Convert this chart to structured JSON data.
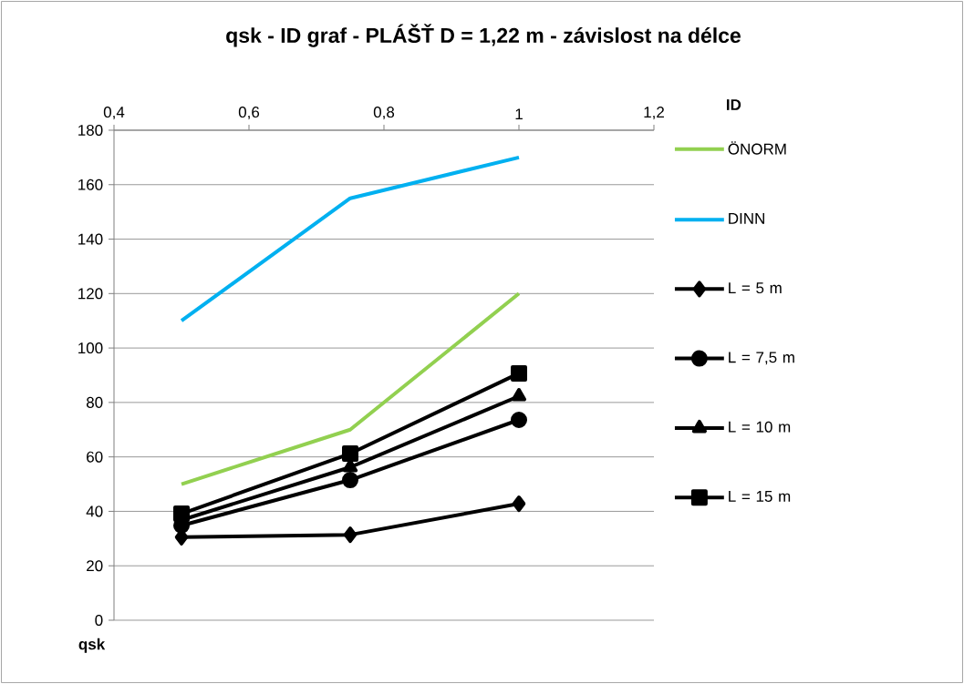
{
  "chart_data": {
    "type": "line",
    "title": "qsk - ID graf - PLÁŠŤ D = 1,22 m -  závislost na délce",
    "xlabel": "qsk",
    "legend_title": "ID",
    "legend": "right",
    "grid": "y",
    "x": [
      0.5,
      0.75,
      1
    ],
    "xlim": [
      0.4,
      1.2
    ],
    "xticks": [
      {
        "value": 0.4,
        "label": "0,4"
      },
      {
        "value": 0.6,
        "label": "0,6"
      },
      {
        "value": 0.8,
        "label": "0,8"
      },
      1,
      {
        "value": 1.2,
        "label": "1,2"
      }
    ],
    "ylim": [
      0,
      180
    ],
    "yticks": [
      0,
      20,
      40,
      60,
      80,
      100,
      120,
      140,
      160,
      180
    ],
    "series": [
      {
        "name": "ÖNORM",
        "color": "#92d050",
        "marker": "none",
        "values": [
          50,
          70,
          120
        ]
      },
      {
        "name": "DINN",
        "color": "#00b0f0",
        "marker": "none",
        "values": [
          110,
          155,
          170
        ]
      },
      {
        "name": "L = 5 m",
        "color": "#000000",
        "marker": "diamond",
        "values": [
          30.5,
          31.4,
          42.8
        ]
      },
      {
        "name": "L = 7,5 m",
        "color": "#000000",
        "marker": "circle",
        "values": [
          34.8,
          51.5,
          73.6
        ]
      },
      {
        "name": "L = 10 m",
        "color": "#000000",
        "marker": "triangle",
        "values": [
          36.8,
          56.2,
          82.3
        ]
      },
      {
        "name": "L = 15 m",
        "color": "#000000",
        "marker": "square",
        "values": [
          39.1,
          61.2,
          90.7
        ]
      }
    ]
  }
}
